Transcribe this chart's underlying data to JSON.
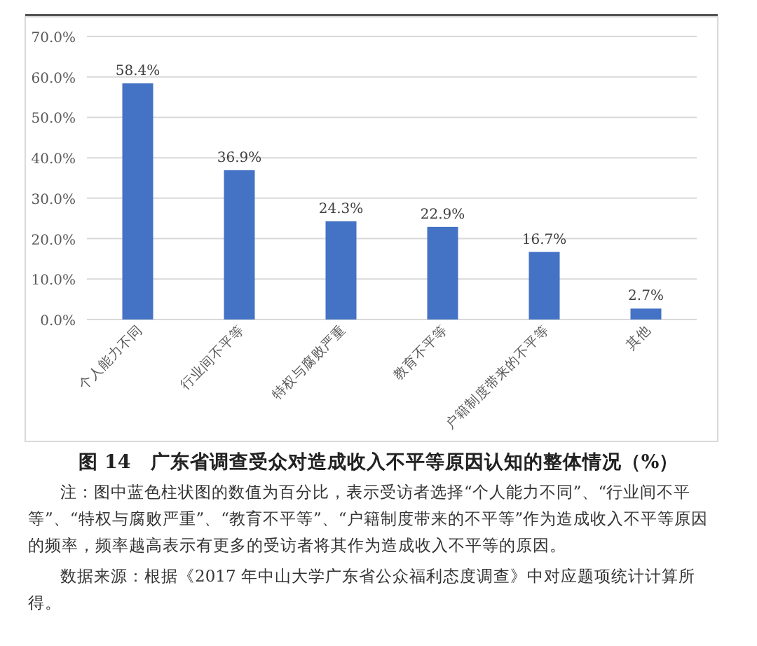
{
  "chart_data": {
    "type": "bar",
    "title": "图 14　广东省调查受众对造成收入不平等原因认知的整体情况（%）",
    "categories": [
      "个人能力不同",
      "行业间不平等",
      "特权与腐败严重",
      "教育不平等",
      "户籍制度带来的不平等",
      "其他"
    ],
    "values": [
      58.4,
      36.9,
      24.3,
      22.9,
      16.7,
      2.7
    ],
    "value_labels": [
      "58.4%",
      "36.9%",
      "24.3%",
      "22.9%",
      "16.7%",
      "2.7%"
    ],
    "color": "#4472c4",
    "ylim": [
      0,
      70
    ],
    "yticks": [
      {
        "value": 0,
        "label": "0.0%"
      },
      {
        "value": 10,
        "label": "10.0%"
      },
      {
        "value": 20,
        "label": "20.0%"
      },
      {
        "value": 30,
        "label": "30.0%"
      },
      {
        "value": 40,
        "label": "40.0%"
      },
      {
        "value": 50,
        "label": "50.0%"
      },
      {
        "value": 60,
        "label": "60.0%"
      },
      {
        "value": 70,
        "label": "70.0%"
      }
    ],
    "grid": "y",
    "annotations": [
      "注：图中蓝色柱状图的数值为百分比，表示受访者选择“个人能力不同”、“行业间不平等”、“特权与腐败严重”、“教育不平等”、“户籍制度带来的不平等”作为造成收入不平等原因的频率，频率越高表示有更多的受访者将其作为造成收入不平等的原因。",
      "数据来源：根据《2017 年中山大学广东省公众福利态度调查》中对应题项统计计算所得。"
    ]
  }
}
